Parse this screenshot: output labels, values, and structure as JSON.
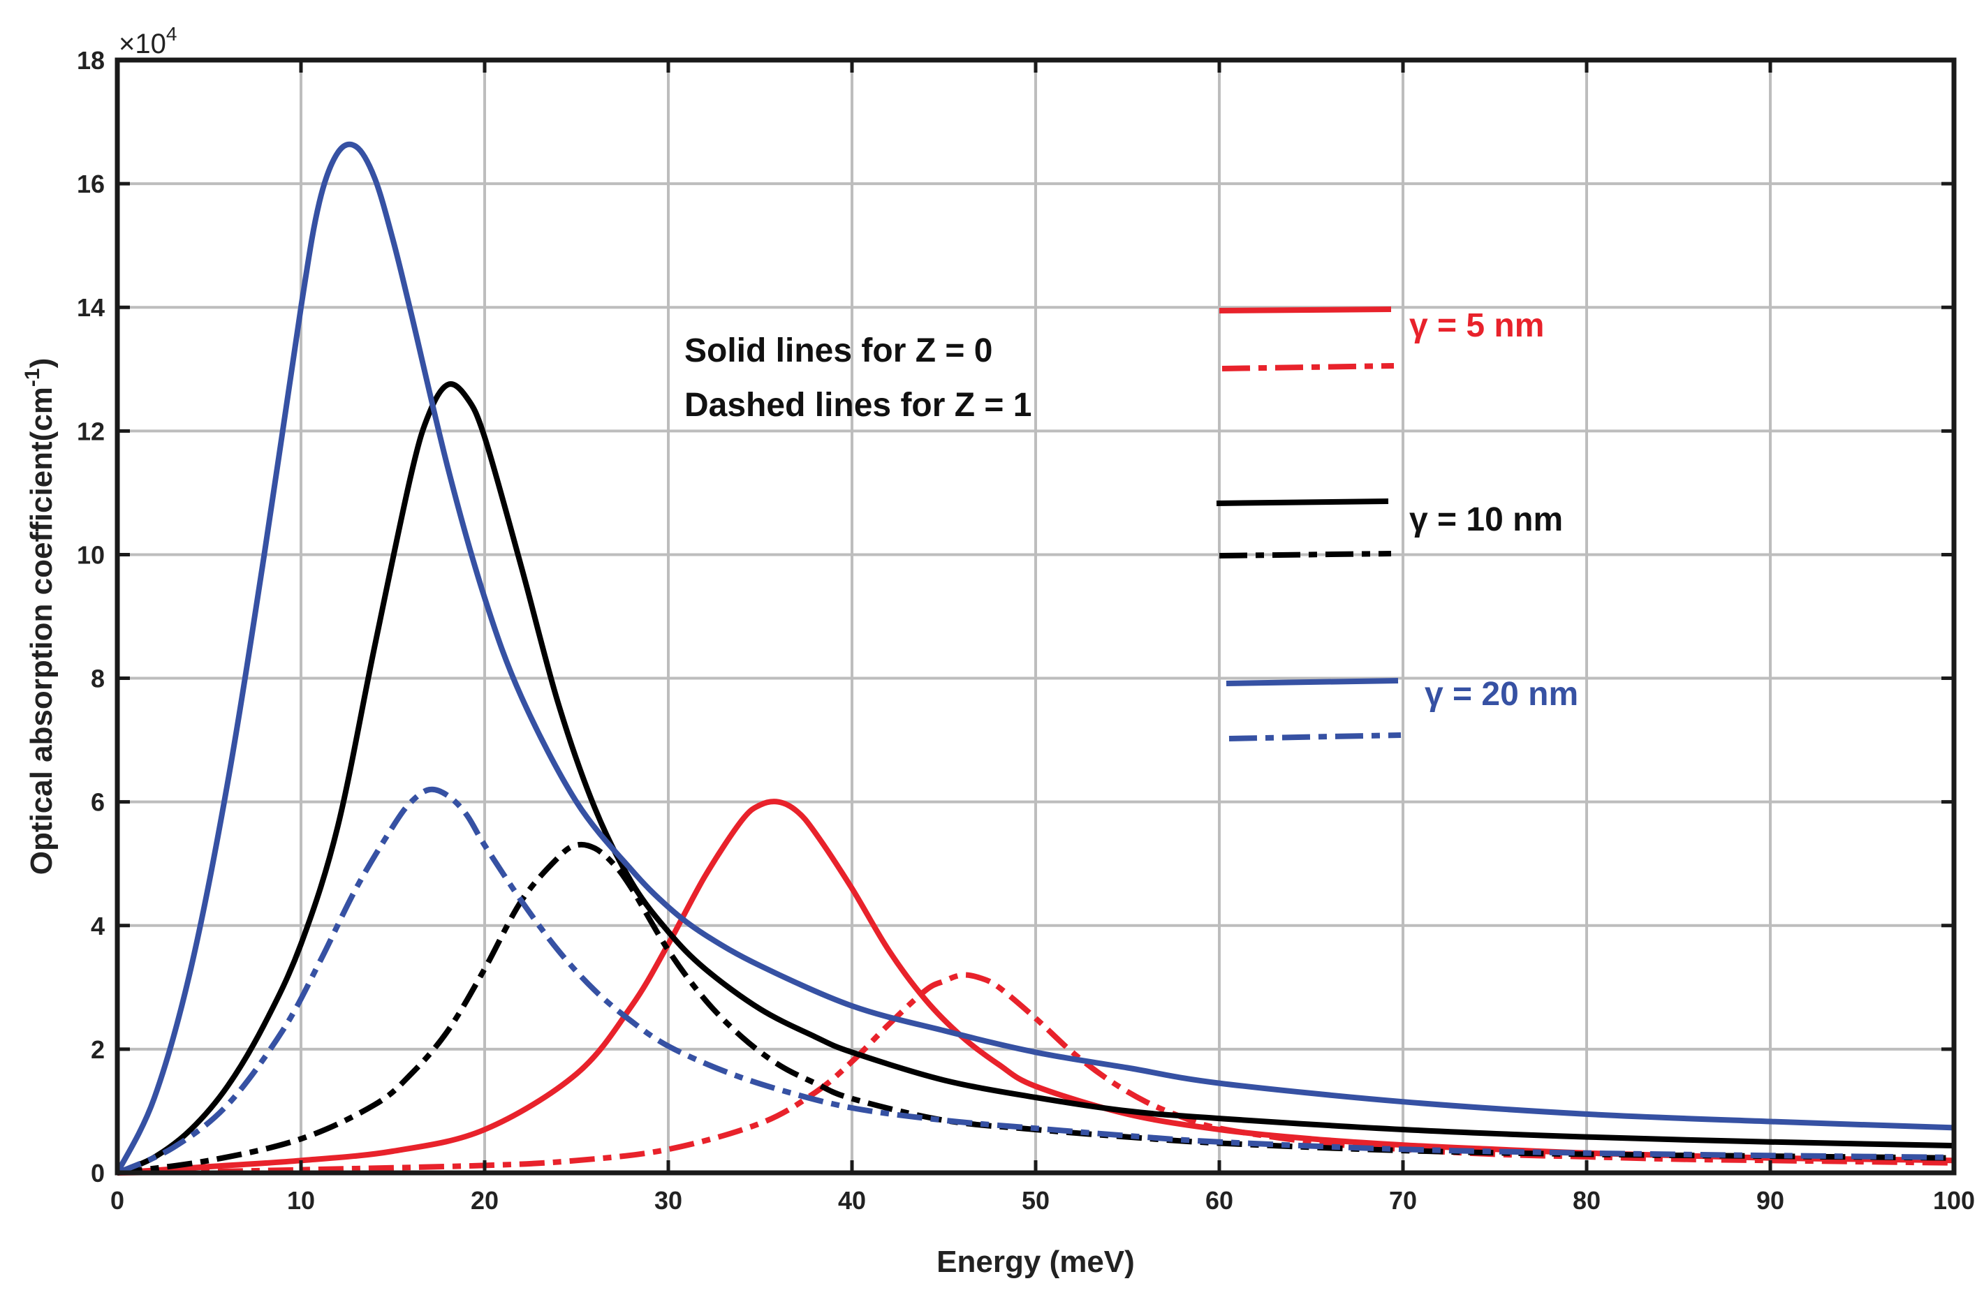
{
  "chart_data": {
    "type": "line",
    "title": "",
    "xlabel": "Energy (meV)",
    "ylabel": "Optical absorption coefficient(cm",
    "ylabel_sup": "-1",
    "ylabel_close": ")",
    "y_multiplier": "×10",
    "y_multiplier_exp": "4",
    "xlim": [
      0,
      100
    ],
    "ylim": [
      0,
      18
    ],
    "x_ticks": [
      0,
      10,
      20,
      30,
      40,
      50,
      60,
      70,
      80,
      90,
      100
    ],
    "y_ticks": [
      0,
      2,
      4,
      6,
      8,
      10,
      12,
      14,
      16,
      18
    ],
    "grid": true,
    "annotations": [
      "Solid lines for Z = 0",
      "Dashed lines for Z = 1"
    ],
    "legend": [
      {
        "label": "γ = 5 nm",
        "color": "#e8222b"
      },
      {
        "label": "γ = 10 nm",
        "color": "#000000"
      },
      {
        "label": "γ = 20 nm",
        "color": "#3651a3"
      }
    ],
    "series": [
      {
        "name": "γ = 5 nm, Z = 0",
        "color": "#e8222b",
        "style": "solid",
        "x": [
          0,
          5,
          10,
          15,
          20,
          25,
          28,
          30,
          32,
          34,
          35,
          36,
          37,
          38,
          40,
          42,
          44,
          46,
          48,
          50,
          55,
          60,
          65,
          70,
          75,
          80,
          85,
          90,
          95,
          100
        ],
        "y": [
          0,
          0.1,
          0.2,
          0.35,
          0.7,
          1.6,
          2.7,
          3.7,
          4.8,
          5.7,
          5.95,
          6.0,
          5.85,
          5.5,
          4.6,
          3.6,
          2.8,
          2.2,
          1.75,
          1.4,
          0.95,
          0.7,
          0.55,
          0.45,
          0.38,
          0.32,
          0.28,
          0.24,
          0.22,
          0.2
        ]
      },
      {
        "name": "γ = 5 nm, Z = 1",
        "color": "#e8222b",
        "style": "dashed",
        "x": [
          0,
          5,
          10,
          20,
          25,
          30,
          35,
          38,
          40,
          42,
          44,
          45,
          46,
          47,
          48,
          50,
          52,
          54,
          56,
          58,
          60,
          65,
          70,
          75,
          80,
          85,
          90,
          95,
          100
        ],
        "y": [
          0,
          0.02,
          0.05,
          0.12,
          0.2,
          0.38,
          0.8,
          1.3,
          1.8,
          2.4,
          2.95,
          3.1,
          3.2,
          3.15,
          3.0,
          2.5,
          1.95,
          1.5,
          1.15,
          0.9,
          0.72,
          0.5,
          0.38,
          0.3,
          0.26,
          0.22,
          0.2,
          0.18,
          0.16
        ]
      },
      {
        "name": "γ = 10 nm, Z = 0",
        "color": "#000000",
        "style": "solid",
        "x": [
          0,
          2,
          4,
          6,
          8,
          10,
          12,
          14,
          16,
          17,
          18,
          19,
          20,
          22,
          24,
          26,
          28,
          30,
          32,
          35,
          38,
          40,
          45,
          50,
          55,
          60,
          70,
          80,
          90,
          100
        ],
        "y": [
          0,
          0.25,
          0.7,
          1.4,
          2.4,
          3.7,
          5.6,
          8.5,
          11.3,
          12.3,
          12.75,
          12.55,
          11.9,
          9.8,
          7.6,
          5.9,
          4.7,
          3.9,
          3.3,
          2.65,
          2.2,
          1.95,
          1.5,
          1.22,
          1.0,
          0.88,
          0.7,
          0.58,
          0.5,
          0.44
        ]
      },
      {
        "name": "γ = 10 nm, Z = 1",
        "color": "#000000",
        "style": "dashed",
        "x": [
          0,
          5,
          10,
          14,
          16,
          18,
          20,
          22,
          24,
          25,
          26,
          27,
          28,
          30,
          32,
          34,
          36,
          38,
          40,
          45,
          50,
          55,
          60,
          70,
          80,
          90,
          100
        ],
        "y": [
          0,
          0.2,
          0.55,
          1.1,
          1.6,
          2.3,
          3.3,
          4.4,
          5.1,
          5.3,
          5.25,
          5.0,
          4.6,
          3.6,
          2.8,
          2.2,
          1.75,
          1.45,
          1.2,
          0.85,
          0.7,
          0.58,
          0.48,
          0.36,
          0.3,
          0.27,
          0.24
        ]
      },
      {
        "name": "γ = 20 nm, Z = 0",
        "color": "#3651a3",
        "style": "solid",
        "x": [
          0,
          2,
          4,
          6,
          8,
          10,
          11,
          12,
          13,
          14,
          15,
          16,
          18,
          20,
          22,
          25,
          28,
          30,
          32,
          35,
          40,
          45,
          50,
          55,
          60,
          70,
          80,
          90,
          100
        ],
        "y": [
          0,
          1.2,
          3.3,
          6.3,
          10.0,
          14.0,
          15.7,
          16.5,
          16.6,
          16.1,
          15.1,
          13.9,
          11.4,
          9.3,
          7.7,
          6.0,
          4.9,
          4.3,
          3.85,
          3.35,
          2.7,
          2.3,
          1.95,
          1.7,
          1.45,
          1.15,
          0.95,
          0.83,
          0.73
        ]
      },
      {
        "name": "γ = 20 nm, Z = 1",
        "color": "#3651a3",
        "style": "dashed",
        "x": [
          0,
          3,
          6,
          9,
          11,
          13,
          15,
          16,
          17,
          18,
          19,
          20,
          22,
          24,
          26,
          28,
          30,
          33,
          36,
          40,
          45,
          50,
          55,
          60,
          70,
          80,
          90,
          100
        ],
        "y": [
          0,
          0.4,
          1.1,
          2.3,
          3.4,
          4.6,
          5.6,
          6.0,
          6.2,
          6.1,
          5.8,
          5.3,
          4.4,
          3.6,
          2.95,
          2.45,
          2.05,
          1.65,
          1.35,
          1.05,
          0.85,
          0.72,
          0.6,
          0.5,
          0.38,
          0.32,
          0.28,
          0.25
        ]
      }
    ]
  }
}
